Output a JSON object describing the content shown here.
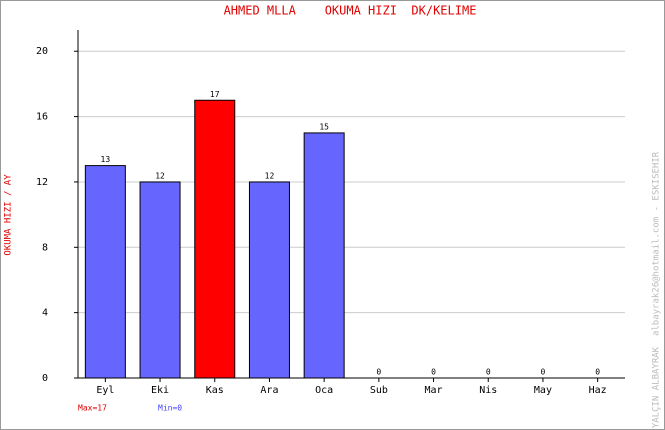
{
  "chart_data": {
    "type": "bar",
    "title": "AHMED MLLA    OKUMA HIZI  DK/KELIME",
    "y_label": "OKUMA HIZI / AY",
    "side_note": "YALÇIN ALBAYRAK  albayrak26@hotmail.com - ESKISEHIR",
    "max_label": "Max=17",
    "min_label": "Min=0",
    "categories": [
      "Eyl",
      "Eki",
      "Kas",
      "Ara",
      "Oca",
      "Sub",
      "Mar",
      "Nis",
      "May",
      "Haz"
    ],
    "values": [
      13,
      12,
      17,
      12,
      15,
      0,
      0,
      0,
      0,
      0
    ],
    "colors": [
      "#6666ff",
      "#6666ff",
      "#ff0000",
      "#6666ff",
      "#6666ff",
      "#6666ff",
      "#6666ff",
      "#6666ff",
      "#6666ff",
      "#6666ff"
    ],
    "ylim": [
      0,
      21.3
    ],
    "yticks": [
      0,
      4,
      8,
      12,
      16,
      20
    ],
    "grid": true
  }
}
